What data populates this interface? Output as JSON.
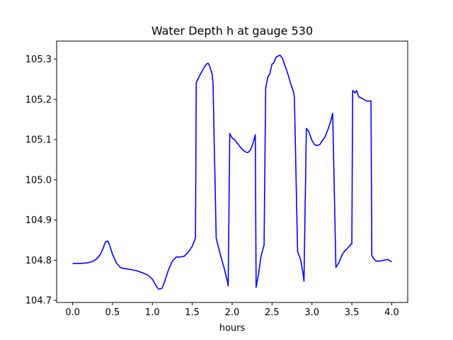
{
  "chart_data": {
    "type": "line",
    "title": "Water Depth h at gauge 530",
    "xlabel": "hours",
    "ylabel": "",
    "xlim": [
      -0.2,
      4.2
    ],
    "ylim": [
      104.695,
      105.345
    ],
    "xticks": [
      0.0,
      0.5,
      1.0,
      1.5,
      2.0,
      2.5,
      3.0,
      3.5,
      4.0
    ],
    "xtick_labels": [
      "0.0",
      "0.5",
      "1.0",
      "1.5",
      "2.0",
      "2.5",
      "3.0",
      "3.5",
      "4.0"
    ],
    "yticks": [
      104.7,
      104.8,
      104.9,
      105.0,
      105.1,
      105.2,
      105.3
    ],
    "ytick_labels": [
      "104.7",
      "104.8",
      "104.9",
      "105.0",
      "105.1",
      "105.2",
      "105.3"
    ],
    "grid": false,
    "series": [
      {
        "color": "#0000ff",
        "x": [
          0.0,
          0.1,
          0.2,
          0.25,
          0.3,
          0.35,
          0.38,
          0.41,
          0.44,
          0.46,
          0.5,
          0.55,
          0.6,
          0.65,
          0.7,
          0.8,
          0.9,
          0.95,
          1.0,
          1.05,
          1.08,
          1.12,
          1.15,
          1.2,
          1.25,
          1.3,
          1.35,
          1.4,
          1.45,
          1.5,
          1.54,
          1.55,
          1.6,
          1.65,
          1.68,
          1.7,
          1.72,
          1.75,
          1.76,
          1.8,
          1.85,
          1.9,
          1.94,
          1.95,
          1.97,
          2.0,
          2.03,
          2.06,
          2.1,
          2.13,
          2.15,
          2.18,
          2.2,
          2.23,
          2.26,
          2.29,
          2.3,
          2.33,
          2.36,
          2.4,
          2.42,
          2.45,
          2.47,
          2.5,
          2.52,
          2.55,
          2.58,
          2.6,
          2.63,
          2.66,
          2.7,
          2.74,
          2.77,
          2.78,
          2.82,
          2.86,
          2.89,
          2.9,
          2.93,
          2.96,
          3.0,
          3.03,
          3.06,
          3.1,
          3.13,
          3.16,
          3.2,
          3.23,
          3.25,
          3.26,
          3.3,
          3.34,
          3.38,
          3.42,
          3.46,
          3.49,
          3.5,
          3.51,
          3.54,
          3.56,
          3.58,
          3.59,
          3.61,
          3.63,
          3.65,
          3.68,
          3.71,
          3.74,
          3.75,
          3.77,
          3.8,
          3.85,
          3.9,
          3.95,
          4.0
        ],
        "y": [
          104.792,
          104.792,
          104.794,
          104.797,
          104.803,
          104.815,
          104.828,
          104.845,
          104.848,
          104.84,
          104.815,
          104.793,
          104.782,
          104.779,
          104.778,
          104.774,
          104.767,
          104.762,
          104.753,
          104.735,
          104.728,
          104.73,
          104.745,
          104.775,
          104.798,
          104.808,
          104.808,
          104.81,
          104.82,
          104.835,
          104.855,
          105.242,
          105.262,
          105.28,
          105.288,
          105.29,
          105.282,
          105.262,
          105.24,
          104.855,
          104.815,
          104.78,
          104.748,
          104.736,
          105.115,
          105.104,
          105.1,
          105.092,
          105.082,
          105.075,
          105.072,
          105.068,
          105.068,
          105.075,
          105.09,
          105.112,
          104.733,
          104.765,
          104.808,
          104.838,
          105.228,
          105.258,
          105.262,
          105.288,
          105.29,
          105.305,
          105.308,
          105.31,
          105.302,
          105.285,
          105.262,
          105.235,
          105.218,
          105.205,
          104.822,
          104.8,
          104.765,
          104.748,
          105.128,
          105.12,
          105.098,
          105.088,
          105.085,
          105.088,
          105.098,
          105.105,
          105.125,
          105.142,
          105.158,
          105.165,
          104.782,
          104.795,
          104.815,
          104.825,
          104.833,
          104.84,
          104.84,
          105.222,
          105.216,
          105.222,
          105.21,
          105.205,
          105.205,
          105.202,
          105.2,
          105.196,
          105.196,
          105.196,
          104.812,
          104.805,
          104.798,
          104.798,
          104.8,
          104.802,
          104.796
        ]
      }
    ]
  }
}
